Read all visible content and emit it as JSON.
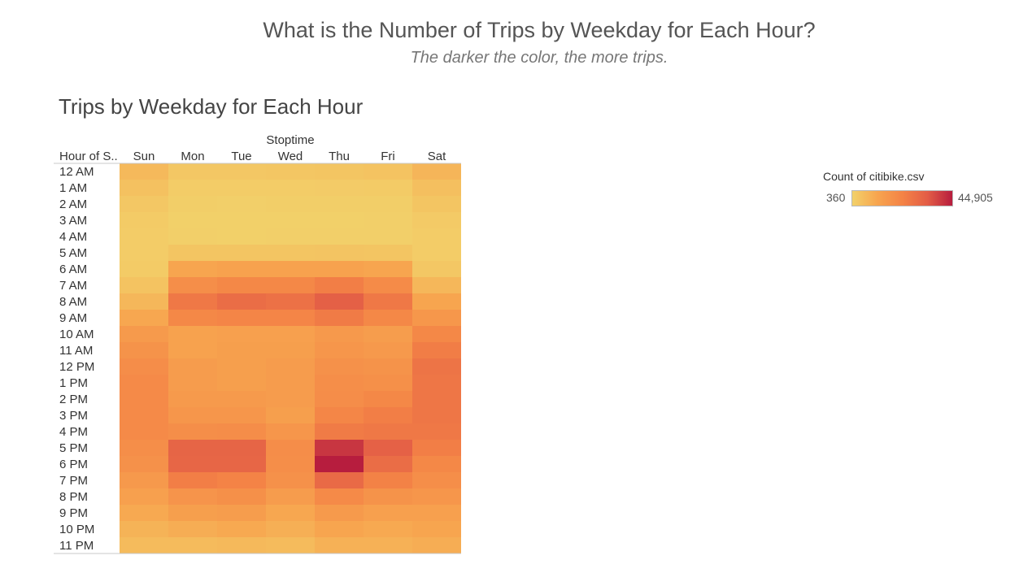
{
  "dashboard": {
    "title": "What is the Number of Trips by Weekday for Each Hour?",
    "subtitle": "The darker the color, the more trips."
  },
  "legend": {
    "title": "Count of citibike.csv",
    "min_label": "360",
    "max_label": "44,905",
    "colors": [
      "#f2d16a",
      "#f7a54f",
      "#f48346",
      "#e35d46",
      "#b71d3e"
    ]
  },
  "chart_data": {
    "type": "heatmap",
    "title": "Trips by Weekday for Each Hour",
    "column_header": "Stoptime",
    "row_header": "Hour of S..",
    "columns": [
      "Sun",
      "Mon",
      "Tue",
      "Wed",
      "Thu",
      "Fri",
      "Sat"
    ],
    "rows": [
      "12 AM",
      "1 AM",
      "2 AM",
      "3 AM",
      "4 AM",
      "5 AM",
      "6 AM",
      "7 AM",
      "8 AM",
      "9 AM",
      "10 AM",
      "11 AM",
      "12 PM",
      "1 PM",
      "2 PM",
      "3 PM",
      "4 PM",
      "5 PM",
      "6 PM",
      "7 PM",
      "8 PM",
      "9 PM",
      "10 PM",
      "11 PM"
    ],
    "color_range": [
      360,
      44905
    ],
    "values": [
      [
        6500,
        2800,
        3000,
        3200,
        3500,
        4000,
        7500
      ],
      [
        4500,
        1500,
        1500,
        1700,
        1800,
        2000,
        5000
      ],
      [
        3000,
        1000,
        900,
        1000,
        1100,
        1200,
        3500
      ],
      [
        2000,
        700,
        600,
        700,
        700,
        800,
        2200
      ],
      [
        1500,
        800,
        700,
        800,
        800,
        900,
        1700
      ],
      [
        1500,
        3500,
        3500,
        3500,
        3600,
        3500,
        1600
      ],
      [
        2000,
        11500,
        12500,
        12500,
        12500,
        11500,
        3000
      ],
      [
        4000,
        19000,
        21000,
        21000,
        24000,
        20000,
        7000
      ],
      [
        7000,
        26000,
        29000,
        28000,
        33000,
        26000,
        11500
      ],
      [
        11000,
        21000,
        22000,
        22000,
        25000,
        21000,
        16000
      ],
      [
        15000,
        12500,
        13000,
        13000,
        15500,
        14000,
        21000
      ],
      [
        17500,
        12500,
        13500,
        13500,
        16500,
        15500,
        24500
      ],
      [
        19500,
        14500,
        13500,
        14500,
        18000,
        17500,
        27000
      ],
      [
        20500,
        14500,
        13500,
        14500,
        19000,
        18500,
        26500
      ],
      [
        20500,
        15000,
        15000,
        14500,
        19500,
        21000,
        26500
      ],
      [
        20500,
        16500,
        16500,
        13500,
        21500,
        24000,
        26500
      ],
      [
        20500,
        19000,
        19500,
        16500,
        25000,
        26000,
        26000
      ],
      [
        19000,
        31500,
        31500,
        19500,
        40500,
        32500,
        24000
      ],
      [
        18000,
        31000,
        31000,
        19000,
        44905,
        29000,
        21000
      ],
      [
        15500,
        24000,
        22500,
        18000,
        30000,
        23000,
        19000
      ],
      [
        13000,
        17000,
        18500,
        14500,
        20500,
        17500,
        16500
      ],
      [
        10500,
        13500,
        14000,
        11000,
        15000,
        13000,
        13000
      ],
      [
        8000,
        9500,
        10500,
        9000,
        11500,
        10500,
        11500
      ],
      [
        6000,
        6000,
        6500,
        6000,
        8500,
        8500,
        9500
      ]
    ]
  }
}
